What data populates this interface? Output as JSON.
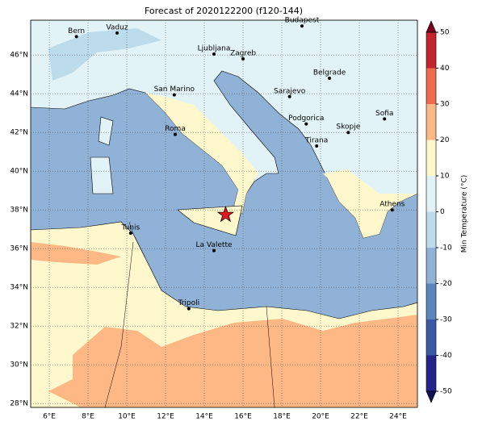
{
  "chart_data": {
    "type": "map",
    "title": "Forecast of 2020122200 (f120-144)",
    "xlim": [
      5.04,
      25
    ],
    "ylim": [
      27.8,
      47.8
    ],
    "xticks": [
      {
        "value": 6,
        "label": "6°E"
      },
      {
        "value": 8,
        "label": "8°E"
      },
      {
        "value": 10,
        "label": "10°E"
      },
      {
        "value": 12,
        "label": "12°E"
      },
      {
        "value": 14,
        "label": "14°E"
      },
      {
        "value": 16,
        "label": "16°E"
      },
      {
        "value": 18,
        "label": "18°E"
      },
      {
        "value": 20,
        "label": "20°E"
      },
      {
        "value": 22,
        "label": "22°E"
      },
      {
        "value": 24,
        "label": "24°E"
      }
    ],
    "yticks": [
      {
        "value": 28,
        "label": "28°N"
      },
      {
        "value": 30,
        "label": "30°N"
      },
      {
        "value": 32,
        "label": "32°N"
      },
      {
        "value": 34,
        "label": "34°N"
      },
      {
        "value": 36,
        "label": "36°N"
      },
      {
        "value": 38,
        "label": "38°N"
      },
      {
        "value": 40,
        "label": "40°N"
      },
      {
        "value": 42,
        "label": "42°N"
      },
      {
        "value": 44,
        "label": "44°N"
      },
      {
        "value": 46,
        "label": "46°N"
      }
    ],
    "grid": true,
    "cities": [
      {
        "name": "Bern",
        "lon": 7.4,
        "lat": 46.95
      },
      {
        "name": "Vaduz",
        "lon": 9.5,
        "lat": 47.14
      },
      {
        "name": "Budapest",
        "lon": 19.04,
        "lat": 47.5
      },
      {
        "name": "Ljubljana",
        "lon": 14.5,
        "lat": 46.05
      },
      {
        "name": "Zagreb",
        "lon": 16,
        "lat": 45.8
      },
      {
        "name": "Belgrade",
        "lon": 20.46,
        "lat": 44.8
      },
      {
        "name": "San Marino",
        "lon": 12.45,
        "lat": 43.94
      },
      {
        "name": "Sarajevo",
        "lon": 18.4,
        "lat": 43.85
      },
      {
        "name": "Sofia",
        "lon": 23.3,
        "lat": 42.7
      },
      {
        "name": "Roma",
        "lon": 12.5,
        "lat": 41.9
      },
      {
        "name": "Podgorica",
        "lon": 19.26,
        "lat": 42.44
      },
      {
        "name": "Skopje",
        "lon": 21.43,
        "lat": 42
      },
      {
        "name": "Tirana",
        "lon": 19.8,
        "lat": 41.3
      },
      {
        "name": "Athens",
        "lon": 23.7,
        "lat": 38
      },
      {
        "name": "Tunis",
        "lon": 10.2,
        "lat": 36.8
      },
      {
        "name": "La Valette",
        "lon": 14.5,
        "lat": 35.9
      },
      {
        "name": "Tripoli",
        "lon": 13.2,
        "lat": 32.9
      }
    ],
    "star": {
      "lon": 15.1,
      "lat": 37.75,
      "color": "#e8141c"
    },
    "colorbar": {
      "label": "Min Temperature (°C)",
      "lim": [
        -50,
        50
      ],
      "ticks": [
        -50,
        -40,
        -30,
        -20,
        -10,
        0,
        10,
        20,
        30,
        40,
        50
      ],
      "colors": [
        "#23238a",
        "#3a58a6",
        "#5a86bd",
        "#91b2d7",
        "#bcdceb",
        "#e2f3f8",
        "#fff8cc",
        "#fdb886",
        "#ee6b4d",
        "#c2252d"
      ],
      "under_color": "#10105a",
      "over_color": "#7a0020"
    }
  }
}
